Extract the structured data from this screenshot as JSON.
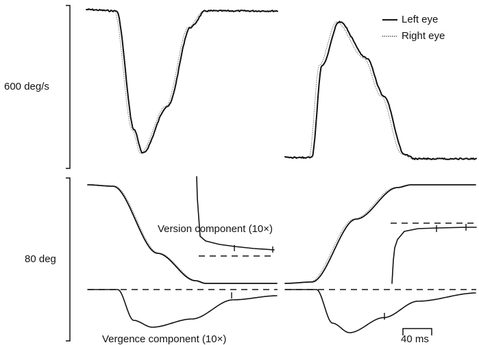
{
  "chart_data": {
    "type": "line",
    "left_labels": {
      "velocity_scale": "600 deg/s",
      "position_scale": "80 deg"
    },
    "legend": {
      "items": [
        "Left eye",
        "Right eye"
      ],
      "placement": "top-right"
    },
    "annotations": {
      "version": "Version component (10×)",
      "vergence": "Vergence component (10×)",
      "time_scale": "40 ms"
    },
    "series": [
      {
        "name": "Left eye",
        "style": "solid"
      },
      {
        "name": "Right eye",
        "style": "dotted"
      }
    ]
  }
}
